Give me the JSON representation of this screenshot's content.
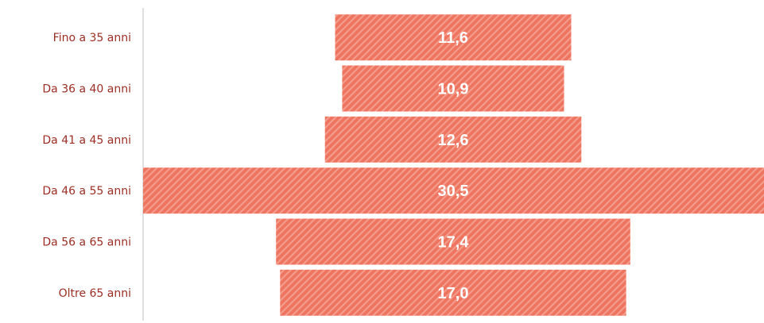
{
  "chart_title_partial": "",
  "chart_data": {
    "type": "bar",
    "orientation": "horizontal-centered",
    "title": "",
    "xlabel": "",
    "ylabel": "",
    "categories": [
      "Fino a 35 anni",
      "Da 36 a 40 anni",
      "Da 41 a 45 anni",
      "Da 46 a 55 anni",
      "Da 56 a 65 anni",
      "Oltre 65 anni"
    ],
    "values": [
      11.6,
      10.9,
      12.6,
      30.5,
      17.4,
      17.0
    ],
    "value_labels": [
      "11,6",
      "10,9",
      "12,6",
      "30,5",
      "17,4",
      "17,0"
    ],
    "grid": false,
    "legend": "none",
    "colors": {
      "bar": "#ee7460",
      "bar_stripe": "#f49c8b",
      "value_label": "#ffffff",
      "category_label": "#9b2e24",
      "axis": "#bfbfbf"
    }
  }
}
